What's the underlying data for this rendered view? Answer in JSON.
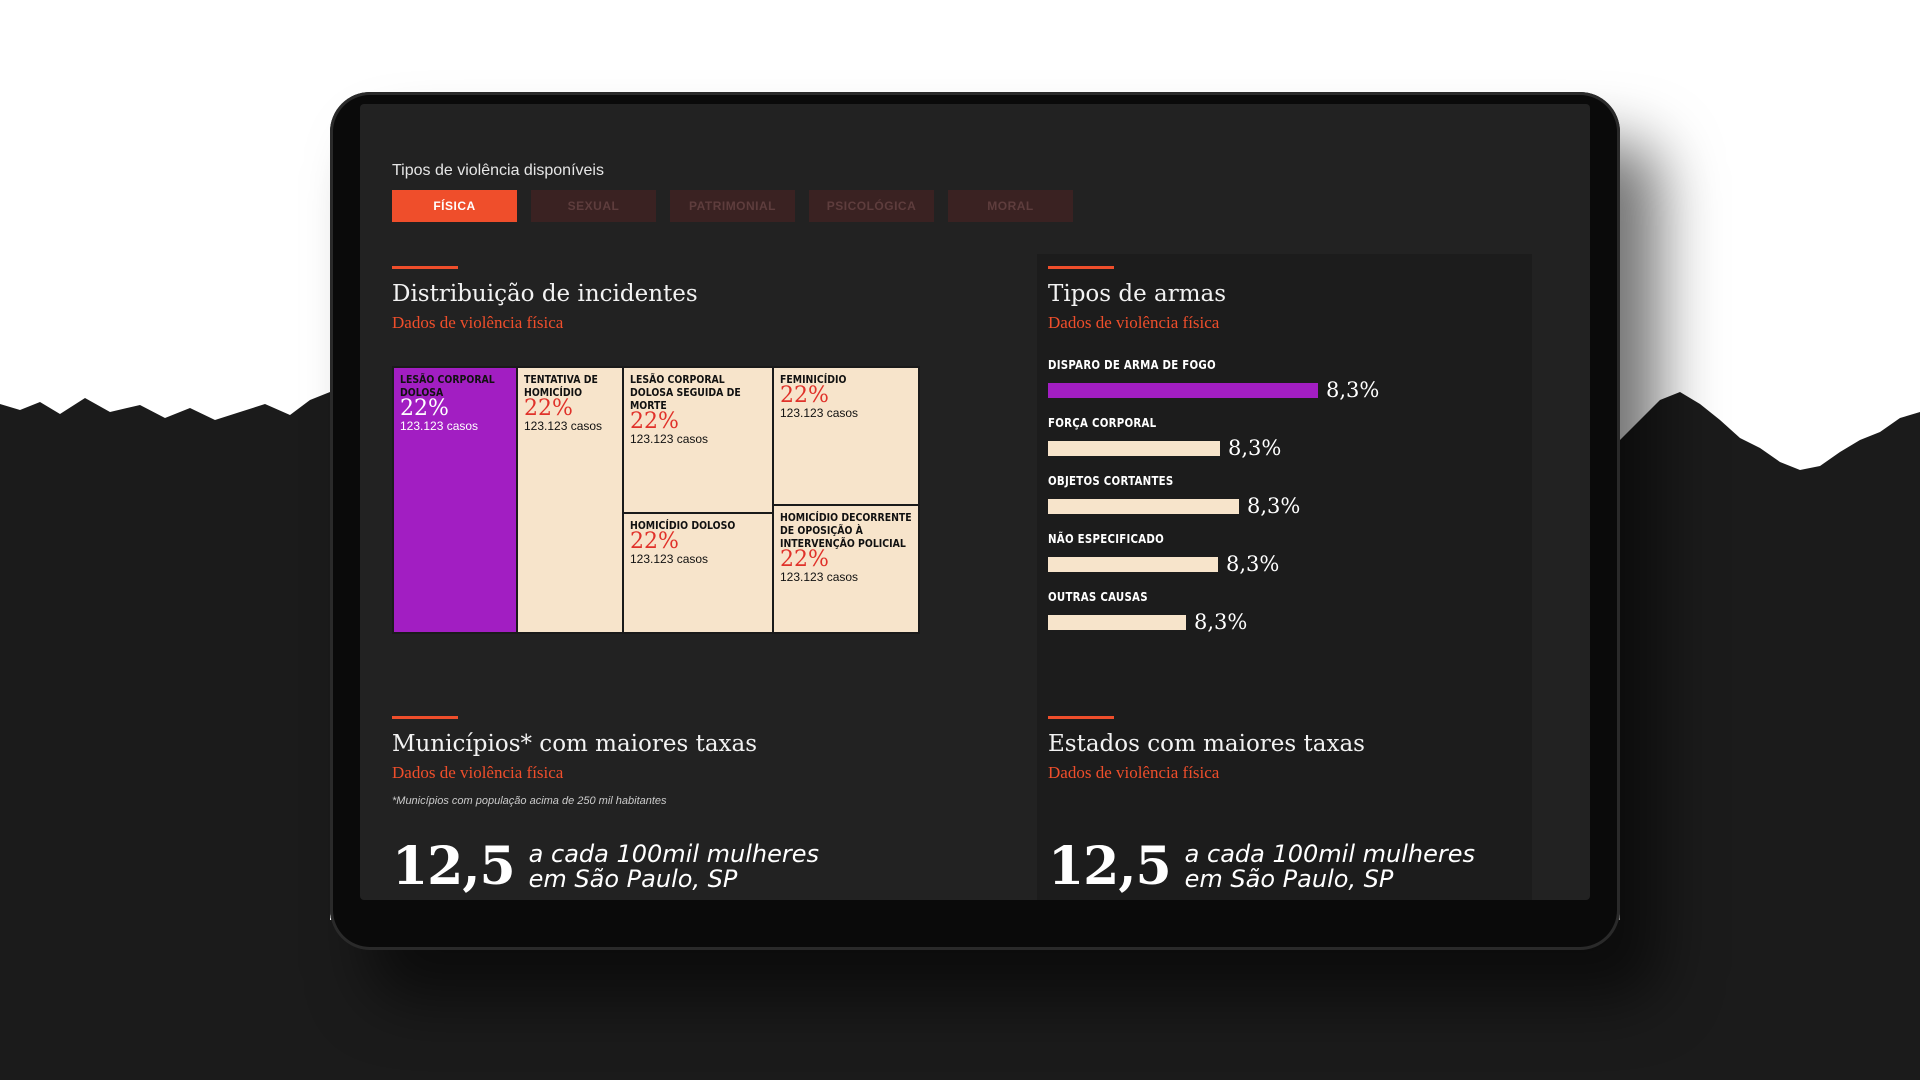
{
  "filters": {
    "label": "Tipos de violência disponíveis",
    "tabs": [
      {
        "label": "FÍSICA",
        "active": true
      },
      {
        "label": "SEXUAL",
        "active": false
      },
      {
        "label": "PATRIMONIAL",
        "active": false
      },
      {
        "label": "PSICOLÓGICA",
        "active": false
      },
      {
        "label": "MORAL",
        "active": false
      }
    ]
  },
  "incidents": {
    "title": "Distribuição de incidentes",
    "subtitle": "Dados de violência física",
    "cells": [
      {
        "label": "LESÃO CORPORAL DOLOSA",
        "pct": "22%",
        "count": "123.123 casos"
      },
      {
        "label": "TENTATIVA DE HOMICÍDIO",
        "pct": "22%",
        "count": "123.123 casos"
      },
      {
        "label": "LESÃO CORPORAL DOLOSA SEGUIDA DE MORTE",
        "pct": "22%",
        "count": "123.123 casos"
      },
      {
        "label": "FEMINICÍDIO",
        "pct": "22%",
        "count": "123.123 casos"
      },
      {
        "label": "HOMICÍDIO DOLOSO",
        "pct": "22%",
        "count": "123.123 casos"
      },
      {
        "label": "HOMICÍDIO DECORRENTE DE OPOSIÇÃO À INTERVENÇÃO POLICIAL",
        "pct": "22%",
        "count": "123.123 casos"
      }
    ]
  },
  "weapons": {
    "title": "Tipos de armas",
    "subtitle": "Dados de violência física",
    "items": [
      {
        "label": "DISPARO DE ARMA DE FOGO",
        "value": "8,3%"
      },
      {
        "label": "FORÇA CORPORAL",
        "value": "8,3%"
      },
      {
        "label": "OBJETOS CORTANTES",
        "value": "8,3%"
      },
      {
        "label": "NÃO ESPECIFICADO",
        "value": "8,3%"
      },
      {
        "label": "OUTRAS CAUSAS",
        "value": "8,3%"
      }
    ]
  },
  "municipalities": {
    "title": "Municípios* com maiores taxas",
    "subtitle": "Dados de violência física",
    "note": "*Municípios com população acima de 250 mil habitantes",
    "stat": "12,5",
    "line1": "a cada 100mil mulheres",
    "line2": "em São Paulo, SP"
  },
  "states": {
    "title": "Estados com maiores taxas",
    "subtitle": "Dados de violência física",
    "stat": "12,5",
    "line1": "a cada 100mil mulheres",
    "line2": "em São Paulo, SP"
  },
  "colors": {
    "accent": "#ef4e2b",
    "highlight": "#a21ec2",
    "cream": "#f7e4cb",
    "screen": "#222222"
  }
}
